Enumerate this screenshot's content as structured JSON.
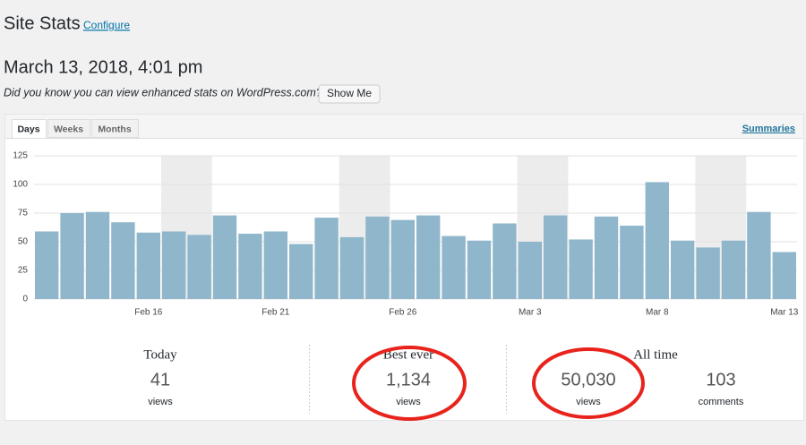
{
  "header": {
    "title": "Site Stats",
    "link": "Configure",
    "date": "March 13, 2018, 4:01 pm",
    "notice": "Did you know you can view enhanced stats on WordPress.com?",
    "button": "Show Me"
  },
  "tabs": [
    "Days",
    "Weeks",
    "Months"
  ],
  "summaries_link": "Summaries",
  "chart_data": {
    "type": "bar",
    "color": "#8fb6cb",
    "categories": [
      null,
      null,
      null,
      null,
      "Feb 16",
      null,
      null,
      null,
      null,
      "Feb 21",
      null,
      null,
      null,
      null,
      "Feb 26",
      null,
      null,
      null,
      null,
      "Mar 3",
      null,
      null,
      null,
      null,
      "Mar 8",
      null,
      null,
      null,
      null,
      "Mar 13"
    ],
    "values": [
      59,
      75,
      76,
      67,
      58,
      59,
      56,
      73,
      57,
      59,
      48,
      71,
      54,
      72,
      69,
      73,
      55,
      51,
      66,
      50,
      73,
      52,
      72,
      64,
      102,
      51,
      45,
      51,
      76,
      41
    ],
    "ylim": [
      0,
      125
    ],
    "yticks": [
      0,
      25,
      50,
      75,
      100,
      125
    ],
    "grid": true
  },
  "stats": {
    "today": {
      "label": "Today",
      "value": "41",
      "unit": "views"
    },
    "best": {
      "label": "Best ever",
      "value": "1,134",
      "unit": "views"
    },
    "all_time": {
      "label": "All time",
      "views": "50,030",
      "views_unit": "views",
      "comments": "103",
      "comments_unit": "comments"
    }
  }
}
